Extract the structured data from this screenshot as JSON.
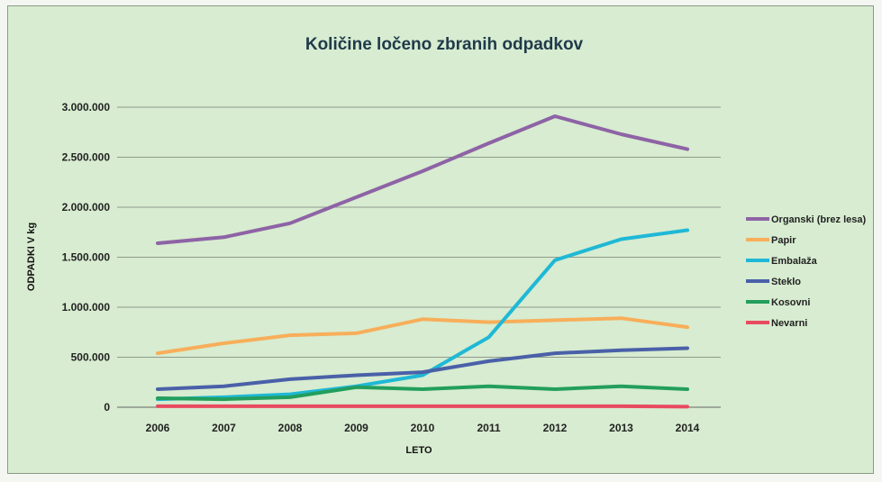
{
  "chart_data": {
    "type": "line",
    "title": "Količine ločeno zbranih odpadkov",
    "xlabel": "LETO",
    "ylabel": "ODPADKI V kg",
    "categories": [
      "2006",
      "2007",
      "2008",
      "2009",
      "2010",
      "2011",
      "2012",
      "2013",
      "2014"
    ],
    "ylim": [
      0,
      3000000
    ],
    "y_ticks": [
      "0",
      "500.000",
      "1.000.000",
      "1.500.000",
      "2.000.000",
      "2.500.000",
      "3.000.000"
    ],
    "grid": true,
    "legend_position": "right",
    "series": [
      {
        "name": "Organski (brez lesa)",
        "color": "#8e63a6",
        "values": [
          1640000,
          1700000,
          1840000,
          2100000,
          2360000,
          2640000,
          2910000,
          2730000,
          2580000
        ]
      },
      {
        "name": "Papir",
        "color": "#f8ae5a",
        "values": [
          540000,
          640000,
          720000,
          740000,
          880000,
          850000,
          870000,
          890000,
          800000
        ]
      },
      {
        "name": "Embalaža",
        "color": "#1fb8d6",
        "values": [
          80000,
          100000,
          130000,
          210000,
          320000,
          700000,
          1470000,
          1680000,
          1770000
        ]
      },
      {
        "name": "Steklo",
        "color": "#4a60a8",
        "values": [
          180000,
          210000,
          280000,
          320000,
          350000,
          460000,
          540000,
          570000,
          590000
        ]
      },
      {
        "name": "Kosovni",
        "color": "#239e5c",
        "values": [
          90000,
          80000,
          100000,
          200000,
          180000,
          210000,
          180000,
          210000,
          180000
        ]
      },
      {
        "name": "Nevarni",
        "color": "#e84a5f",
        "values": [
          10000,
          10000,
          10000,
          10000,
          10000,
          10000,
          10000,
          10000,
          5000
        ]
      }
    ]
  }
}
